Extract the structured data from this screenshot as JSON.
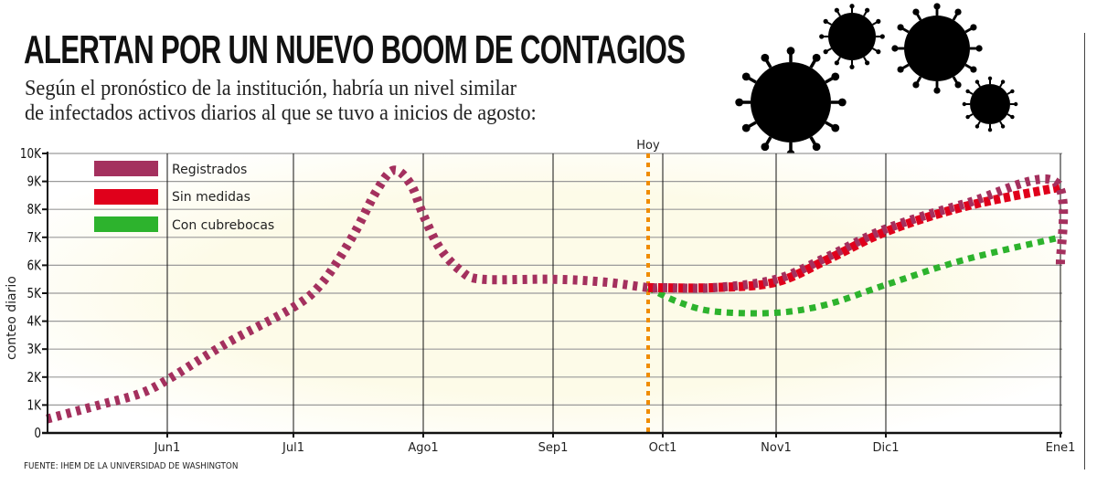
{
  "header": {
    "title": "ALERTAN POR UN NUEVO BOOM DE CONTAGIOS",
    "subtitle_line1": "Según el pronóstico de la institución, habría un nivel similar",
    "subtitle_line2": "de infectados activos diarios al que se tuvo a inicios de agosto:"
  },
  "source": "FUENTE: IHEM DE LA UNIVERSIDAD DE WASHINGTON",
  "decoration": {
    "icon": "coronavirus-icon",
    "count": 4
  },
  "chart_data": {
    "type": "line",
    "title": "",
    "xlabel": "",
    "ylabel": "conteo diario",
    "ylim": [
      0,
      10000
    ],
    "yticks": [
      0,
      1000,
      2000,
      3000,
      4000,
      5000,
      6000,
      7000,
      8000,
      9000,
      10000
    ],
    "ytick_labels": [
      "0",
      "1K",
      "2K",
      "3K",
      "4K",
      "5K",
      "6K",
      "7K",
      "8K",
      "9K",
      "10K"
    ],
    "xticks": [
      "Jun 1",
      "Jul 1",
      "Ago 1",
      "Sep 1",
      "Oct 1",
      "Nov 1",
      "Dic 1",
      "Ene 1"
    ],
    "xtick_labels": [
      "Jun1",
      "Jul1",
      "Ago1",
      "Sep1",
      "Oct1",
      "Nov1",
      "Dic1",
      "Ene1"
    ],
    "grid": true,
    "legend_position": "top-left",
    "annotation": {
      "label": "Hoy",
      "date": "Sep 27",
      "color": "#f08c00"
    },
    "series": [
      {
        "name": "Registrados",
        "color": "#a4305e",
        "points": [
          [
            "May 2",
            500
          ],
          [
            "May 15",
            1000
          ],
          [
            "May 25",
            1400
          ],
          [
            "Jun 1",
            1900
          ],
          [
            "Jun 15",
            3200
          ],
          [
            "Jul 1",
            4500
          ],
          [
            "Jul 8",
            5400
          ],
          [
            "Jul 15",
            7000
          ],
          [
            "Jul 21",
            8700
          ],
          [
            "Jul 25",
            9400
          ],
          [
            "Jul 29",
            8900
          ],
          [
            "Ago 1",
            7800
          ],
          [
            "Ago 5",
            6600
          ],
          [
            "Ago 10",
            5800
          ],
          [
            "Ago 15",
            5500
          ],
          [
            "Sep 1",
            5500
          ],
          [
            "Sep 15",
            5400
          ],
          [
            "Sep 27",
            5200
          ],
          [
            "Oct 1",
            5200
          ],
          [
            "Oct 15",
            5200
          ],
          [
            "Nov 1",
            5500
          ],
          [
            "Nov 15",
            6300
          ],
          [
            "Dic 1",
            7300
          ],
          [
            "Dic 15",
            8200
          ],
          [
            "Dic 31",
            9000
          ],
          [
            "Ene 1",
            6000
          ]
        ]
      },
      {
        "name": "Sin medidas",
        "color": "#e0001b",
        "points": [
          [
            "Sep 27",
            5200
          ],
          [
            "Oct 15",
            5200
          ],
          [
            "Nov 1",
            5400
          ],
          [
            "Nov 15",
            6200
          ],
          [
            "Dic 1",
            7200
          ],
          [
            "Dic 15",
            8100
          ],
          [
            "Ene 1",
            8800
          ]
        ]
      },
      {
        "name": "Con cubrebocas",
        "color": "#2db32d",
        "points": [
          [
            "Sep 27",
            5200
          ],
          [
            "Oct 5",
            4700
          ],
          [
            "Oct 15",
            4350
          ],
          [
            "Nov 1",
            4300
          ],
          [
            "Nov 15",
            4600
          ],
          [
            "Dic 1",
            5300
          ],
          [
            "Dic 15",
            6200
          ],
          [
            "Ene 1",
            7000
          ]
        ]
      }
    ]
  }
}
